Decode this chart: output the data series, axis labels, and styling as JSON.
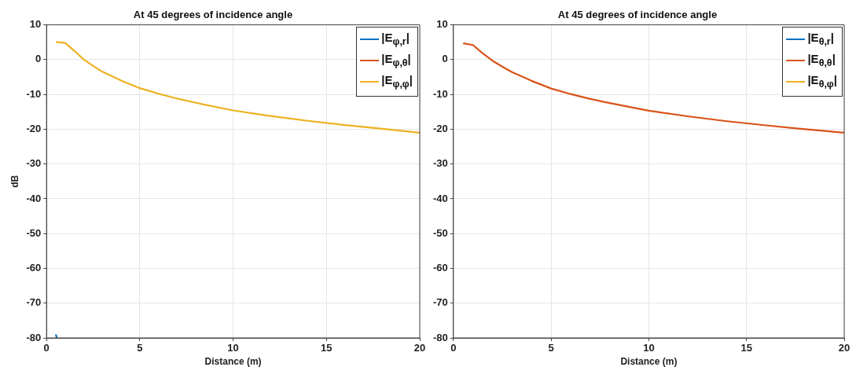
{
  "chart_data": [
    {
      "type": "line",
      "title": "At 45 degrees of incidence angle",
      "xlabel": "Distance (m)",
      "ylabel": "dB",
      "xlim": [
        0,
        20
      ],
      "xticks": [
        0,
        5,
        10,
        15,
        20
      ],
      "ylim": [
        -80,
        10
      ],
      "yticks": [
        -80,
        -70,
        -60,
        -50,
        -40,
        -30,
        -20,
        -10,
        0,
        10
      ],
      "grid": true,
      "legend": "top right",
      "marker": "none",
      "line_style": "solid",
      "series": [
        {
          "name": "|E$_{φ,r}$|",
          "color": "#0072bd",
          "x": [
            0.5,
            0.55
          ],
          "values": [
            -79,
            -80
          ]
        },
        {
          "name": "|E$_{φ,θ}$|",
          "color": "#d95319"
        },
        {
          "name": "|E$_{φ,φ}$|",
          "color": "#edb120",
          "x": [
            0.5,
            1,
            1.5,
            2,
            2.5,
            3,
            4,
            5,
            6,
            7,
            8,
            10,
            12,
            14,
            16,
            18,
            20
          ],
          "values": [
            5.1,
            4.8,
            2.5,
            0,
            -1.8,
            -3.5,
            -6,
            -8.2,
            -9.8,
            -11.2,
            -12.4,
            -14.6,
            -16.2,
            -17.6,
            -18.8,
            -19.9,
            -21
          ]
        }
      ]
    },
    {
      "type": "line",
      "title": "At 45 degrees of incidence angle",
      "xlabel": "Distance (m)",
      "xlim": [
        0,
        20
      ],
      "xticks": [
        0,
        5,
        10,
        15,
        20
      ],
      "ylim": [
        -80,
        10
      ],
      "yticks": [
        -80,
        -70,
        -60,
        -50,
        -40,
        -30,
        -20,
        -10,
        0,
        10
      ],
      "grid": true,
      "legend": "top right",
      "marker": "none",
      "line_style": "solid",
      "series": [
        {
          "name": "|E$_{θ,r}$|",
          "color": "#0072bd"
        },
        {
          "name": "|E$_{θ,θ}$|",
          "color": "#d95319",
          "x": [
            0.5,
            1,
            1.5,
            2,
            2.5,
            3,
            4,
            5,
            6,
            7,
            8,
            10,
            12,
            14,
            16,
            18,
            20
          ],
          "values": [
            4.7,
            4.2,
            1.8,
            -0.3,
            -2,
            -3.6,
            -6.1,
            -8.3,
            -9.9,
            -11.3,
            -12.5,
            -14.7,
            -16.3,
            -17.7,
            -18.9,
            -20,
            -21
          ]
        },
        {
          "name": "|E$_{θ,φ}$|",
          "color": "#edb120"
        }
      ]
    }
  ]
}
